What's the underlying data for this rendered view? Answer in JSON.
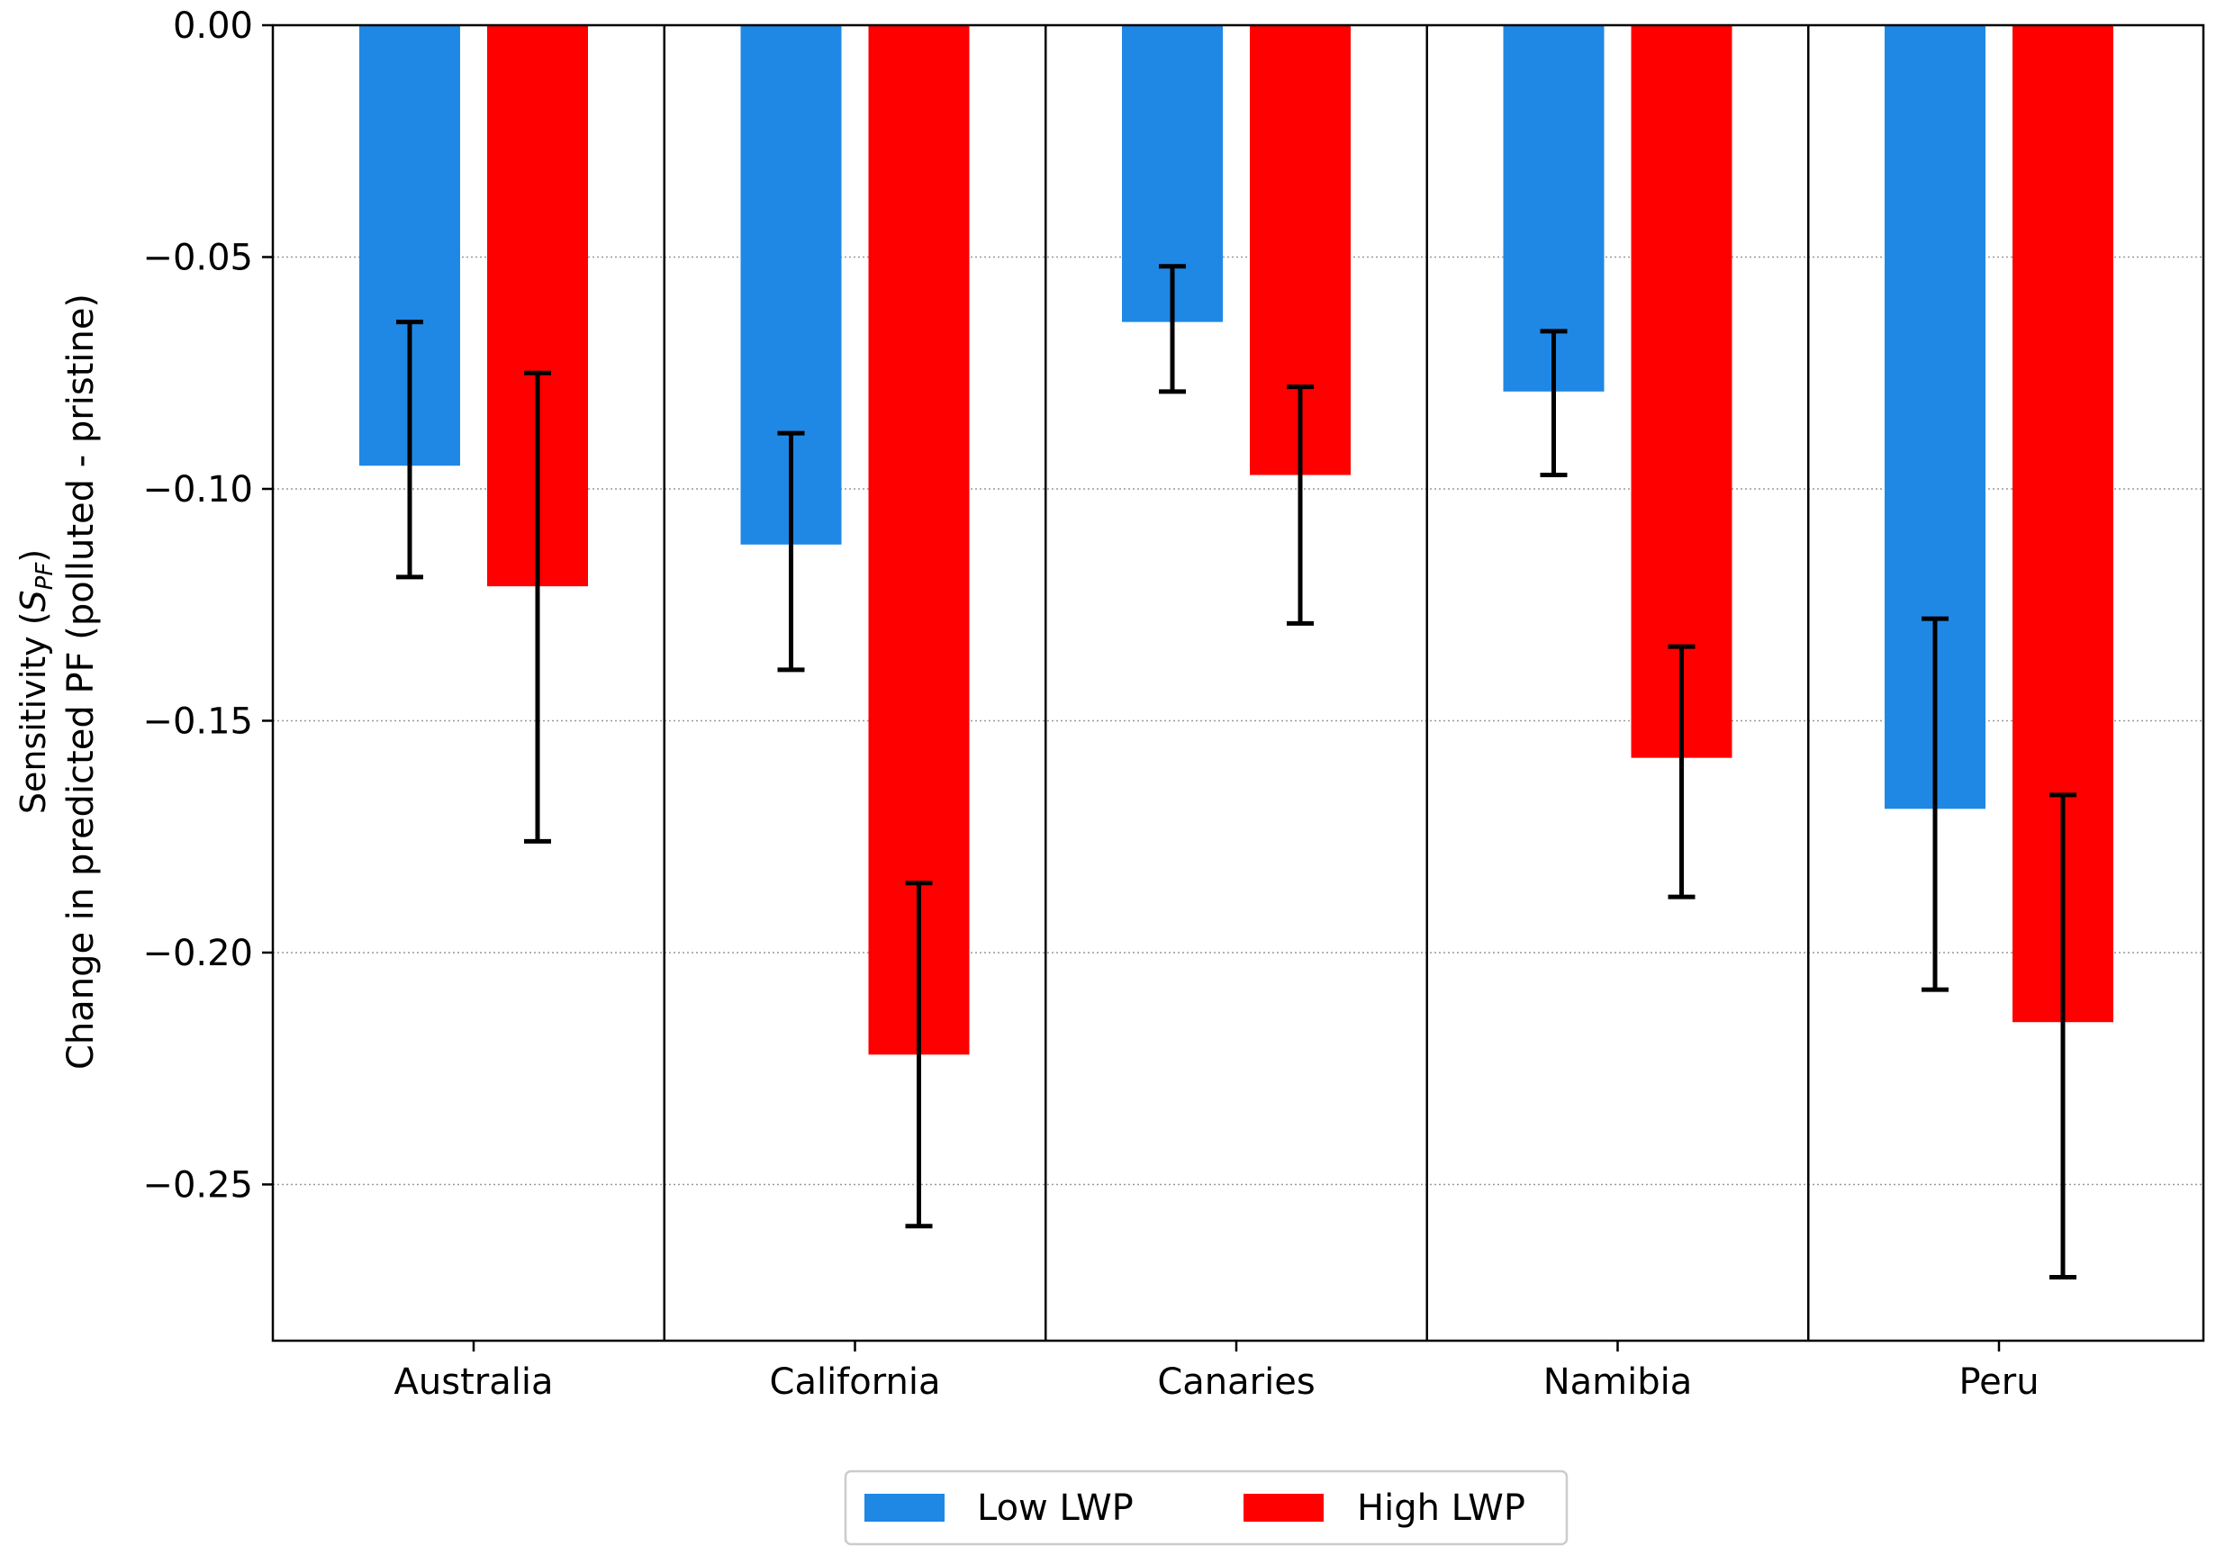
{
  "chart_data": {
    "type": "bar",
    "title": "",
    "xlabel": "",
    "ylabel_line1": "Sensitivity (",
    "ylabel_symbol": "S",
    "ylabel_subscript": "PF",
    "ylabel_line1_end": ")",
    "ylabel_line2": "Change in predicted PF (polluted - pristine)",
    "ylim": [
      -0.2837,
      0.0
    ],
    "yticks": [
      0.0,
      -0.05,
      -0.1,
      -0.15,
      -0.2,
      -0.25
    ],
    "ytick_labels": [
      "0.00",
      "−0.05",
      "−0.10",
      "−0.15",
      "−0.20",
      "−0.25"
    ],
    "grid": "horizontal dotted",
    "categories": [
      "Australia",
      "California",
      "Canaries",
      "Namibia",
      "Peru"
    ],
    "series": [
      {
        "name": "Low LWP",
        "color": "#1f88e5",
        "values": [
          -0.095,
          -0.112,
          -0.064,
          -0.079,
          -0.169
        ],
        "error_low": [
          -0.119,
          -0.139,
          -0.079,
          -0.097,
          -0.208
        ],
        "error_high": [
          -0.064,
          -0.088,
          -0.052,
          -0.066,
          -0.128
        ]
      },
      {
        "name": "High LWP",
        "color": "#ff0000",
        "values": [
          -0.121,
          -0.222,
          -0.097,
          -0.158,
          -0.215
        ],
        "error_low": [
          -0.176,
          -0.259,
          -0.129,
          -0.188,
          -0.27
        ],
        "error_high": [
          -0.075,
          -0.185,
          -0.078,
          -0.134,
          -0.166
        ]
      }
    ],
    "legend": {
      "placement": "bottom-center",
      "entries": [
        "Low LWP",
        "High LWP"
      ]
    }
  }
}
